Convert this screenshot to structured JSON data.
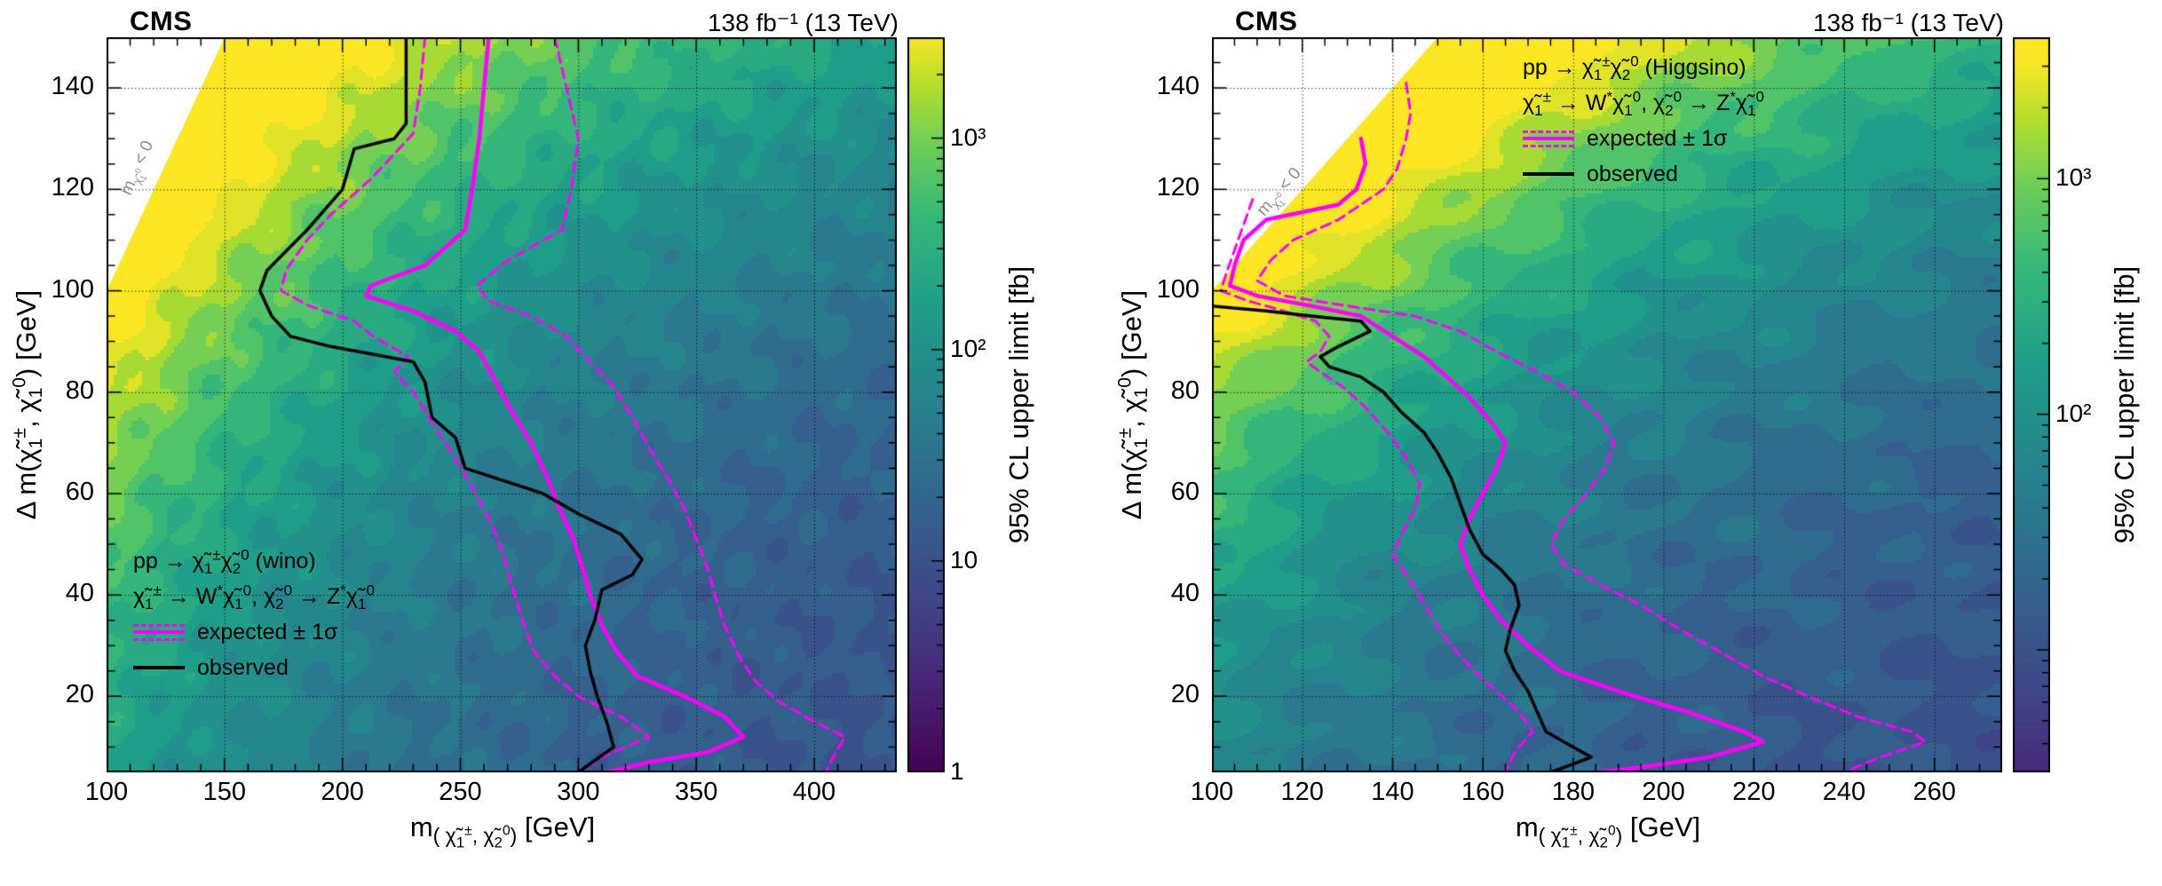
{
  "page": {
    "background": "#ffffff"
  },
  "colors": {
    "expected": "#ff00ff",
    "observed": "#000000",
    "grid": "#000000",
    "forbidden_text": "#8a8a8a"
  },
  "chart_data": [
    {
      "type": "heatmap",
      "model": "wino",
      "cms": "CMS",
      "lumi": "138 fb⁻¹ (13 TeV)",
      "xlabel_html": "m<sub>( χ̃<sub>1</sub><sup>±</sup>, χ̃<sub>2</sub><sup>0</sup>)</sub> [GeV]",
      "ylabel_html": "Δ m(χ̃<sub>1</sub><sup>±</sup>, χ̃<sub>1</sub><sup>0</sup>) [GeV]",
      "forbidden_html": "m<sub>χ̃<sub>1</sub><sup>0</sup></sub> &lt; 0",
      "legend": {
        "process_html": "pp → χ̃<sub>1</sub><sup>±</sup>χ̃<sub>2</sub><sup>0</sup>  (wino)",
        "decay_html": "χ̃<sub>1</sub><sup>±</sup> → W<sup>*</sup>χ̃<sub>1</sub><sup>0</sup>,  χ̃<sub>2</sub><sup>0</sup> → Z<sup>*</sup>χ̃<sub>1</sub><sup>0</sup>",
        "expected_label": "expected ± 1σ",
        "observed_label": "observed"
      },
      "axes": {
        "x_min": 100,
        "x_max": 435,
        "y_min": 5,
        "y_max": 150,
        "x_ticks": [
          100,
          150,
          200,
          250,
          300,
          350,
          400
        ],
        "x_minor": 10,
        "y_ticks": [
          20,
          40,
          60,
          80,
          100,
          120,
          140
        ],
        "y_minor": 5,
        "grid": true
      },
      "colorbar": {
        "label": "95% CL upper limit [fb]",
        "scale": "log",
        "log_min": 0,
        "log_max": 3.477,
        "ticks": [
          {
            "label": "10³",
            "value": 1000
          },
          {
            "label": "10²",
            "value": 100
          },
          {
            "label": "10",
            "value": 10
          },
          {
            "label": "1",
            "value": 1
          }
        ]
      },
      "field": {
        "base": 0.9,
        "amp": 2.6,
        "diag_scale": 150,
        "top": 1.0
      },
      "forbidden_region": {
        "rule": "dm > m"
      },
      "contours": {
        "observed": [
          [
            227,
            150
          ],
          [
            227,
            133
          ],
          [
            222,
            130
          ],
          [
            205,
            128
          ],
          [
            200,
            120
          ],
          [
            185,
            112
          ],
          [
            168,
            104
          ],
          [
            165,
            100
          ],
          [
            170,
            95
          ],
          [
            178,
            91
          ],
          [
            195,
            89
          ],
          [
            230,
            86
          ],
          [
            235,
            82
          ],
          [
            238,
            75
          ],
          [
            248,
            71
          ],
          [
            252,
            65
          ],
          [
            285,
            60
          ],
          [
            300,
            56
          ],
          [
            318,
            52
          ],
          [
            327,
            47
          ],
          [
            323,
            44
          ],
          [
            310,
            41
          ],
          [
            307,
            35
          ],
          [
            303,
            30
          ],
          [
            305,
            25
          ],
          [
            308,
            20
          ],
          [
            312,
            15
          ],
          [
            315,
            10
          ],
          [
            303,
            6
          ],
          [
            300,
            5
          ]
        ],
        "expected": [
          [
            262,
            150
          ],
          [
            260,
            140
          ],
          [
            258,
            130
          ],
          [
            255,
            120
          ],
          [
            252,
            112
          ],
          [
            235,
            105
          ],
          [
            212,
            101
          ],
          [
            210,
            99
          ],
          [
            230,
            96
          ],
          [
            248,
            92
          ],
          [
            258,
            88
          ],
          [
            265,
            82
          ],
          [
            272,
            76
          ],
          [
            280,
            70
          ],
          [
            287,
            63
          ],
          [
            292,
            57
          ],
          [
            298,
            51
          ],
          [
            302,
            45
          ],
          [
            305,
            40
          ],
          [
            310,
            34
          ],
          [
            316,
            29
          ],
          [
            325,
            24
          ],
          [
            345,
            20
          ],
          [
            362,
            16
          ],
          [
            370,
            12
          ],
          [
            355,
            9
          ],
          [
            330,
            7
          ],
          [
            312,
            5
          ]
        ],
        "expected_up": [
          [
            290,
            150
          ],
          [
            295,
            140
          ],
          [
            300,
            130
          ],
          [
            297,
            120
          ],
          [
            293,
            112
          ],
          [
            270,
            106
          ],
          [
            257,
            101
          ],
          [
            262,
            98
          ],
          [
            280,
            95
          ],
          [
            295,
            91
          ],
          [
            305,
            86
          ],
          [
            315,
            81
          ],
          [
            323,
            75
          ],
          [
            330,
            69
          ],
          [
            338,
            63
          ],
          [
            345,
            57
          ],
          [
            350,
            51
          ],
          [
            355,
            45
          ],
          [
            358,
            40
          ],
          [
            362,
            34
          ],
          [
            368,
            28
          ],
          [
            375,
            23
          ],
          [
            385,
            19
          ],
          [
            400,
            15
          ],
          [
            413,
            12
          ],
          [
            408,
            8
          ],
          [
            405,
            5
          ]
        ],
        "expected_down": [
          [
            235,
            150
          ],
          [
            233,
            140
          ],
          [
            230,
            131
          ],
          [
            212,
            122
          ],
          [
            195,
            115
          ],
          [
            185,
            110
          ],
          [
            176,
            104
          ],
          [
            174,
            100
          ],
          [
            186,
            97
          ],
          [
            205,
            94
          ],
          [
            213,
            91
          ],
          [
            228,
            87
          ],
          [
            222,
            84
          ],
          [
            230,
            80
          ],
          [
            238,
            74
          ],
          [
            245,
            69
          ],
          [
            253,
            63
          ],
          [
            260,
            57
          ],
          [
            266,
            51
          ],
          [
            270,
            45
          ],
          [
            273,
            40
          ],
          [
            277,
            34
          ],
          [
            281,
            29
          ],
          [
            290,
            24
          ],
          [
            300,
            20
          ],
          [
            318,
            16
          ],
          [
            330,
            12
          ],
          [
            310,
            8
          ],
          [
            300,
            5
          ]
        ]
      }
    },
    {
      "type": "heatmap",
      "model": "Higgsino",
      "cms": "CMS",
      "lumi": "138 fb⁻¹ (13 TeV)",
      "xlabel_html": "m<sub>( χ̃<sub>1</sub><sup>±</sup>, χ̃<sub>2</sub><sup>0</sup>)</sub> [GeV]",
      "ylabel_html": "Δ m(χ̃<sub>1</sub><sup>±</sup>, χ̃<sub>1</sub><sup>0</sup>) [GeV]",
      "forbidden_html": "m<sub>χ̃<sub>1</sub><sup>0</sup></sub> &lt; 0",
      "legend": {
        "process_html": "pp → χ̃<sub>1</sub><sup>±</sup>χ̃<sub>2</sub><sup>0</sup>  (Higgsino)",
        "decay_html": "χ̃<sub>1</sub><sup>±</sup> → W<sup>*</sup>χ̃<sub>1</sub><sup>0</sup>,  χ̃<sub>2</sub><sup>0</sup> → Z<sup>*</sup>χ̃<sub>1</sub><sup>0</sup>",
        "expected_label": "expected ± 1σ",
        "observed_label": "observed"
      },
      "axes": {
        "x_min": 100,
        "x_max": 275,
        "y_min": 5,
        "y_max": 150,
        "x_ticks": [
          100,
          120,
          140,
          160,
          180,
          200,
          220,
          240,
          260
        ],
        "x_minor": 5,
        "y_ticks": [
          20,
          40,
          60,
          80,
          100,
          120,
          140
        ],
        "y_minor": 5,
        "grid": true
      },
      "colorbar": {
        "label": "95% CL upper limit [fb]",
        "scale": "log",
        "log_min": 0.48,
        "log_max": 3.6,
        "ticks": [
          {
            "label": "10³",
            "value": 1000
          },
          {
            "label": "10²",
            "value": 100
          }
        ]
      },
      "field": {
        "base": 0.9,
        "amp": 2.6,
        "diag_scale": 90,
        "top": 1.0
      },
      "forbidden_region": {
        "rule": "dm > m"
      },
      "contours": {
        "observed": [
          [
            100,
            97
          ],
          [
            112,
            96
          ],
          [
            122,
            95
          ],
          [
            133,
            94
          ],
          [
            135,
            92
          ],
          [
            128,
            89
          ],
          [
            124,
            87
          ],
          [
            126,
            85
          ],
          [
            133,
            83
          ],
          [
            138,
            80
          ],
          [
            142,
            76
          ],
          [
            147,
            72
          ],
          [
            150,
            68
          ],
          [
            153,
            63
          ],
          [
            155,
            58
          ],
          [
            157,
            53
          ],
          [
            160,
            48
          ],
          [
            164,
            45
          ],
          [
            167,
            42
          ],
          [
            168,
            38
          ],
          [
            166,
            33
          ],
          [
            165,
            29
          ],
          [
            167,
            25
          ],
          [
            170,
            21
          ],
          [
            172,
            17
          ],
          [
            174,
            13
          ],
          [
            180,
            10
          ],
          [
            184,
            8
          ],
          [
            178,
            6
          ],
          [
            175,
            5
          ]
        ],
        "expected": [
          [
            133,
            130
          ],
          [
            134,
            125
          ],
          [
            132,
            120
          ],
          [
            128,
            117
          ],
          [
            112,
            114
          ],
          [
            107,
            110
          ],
          [
            105,
            105
          ],
          [
            104,
            101
          ],
          [
            110,
            99
          ],
          [
            122,
            97
          ],
          [
            133,
            95
          ],
          [
            140,
            91
          ],
          [
            147,
            87
          ],
          [
            152,
            83
          ],
          [
            157,
            79
          ],
          [
            162,
            74
          ],
          [
            165,
            70
          ],
          [
            163,
            65
          ],
          [
            160,
            60
          ],
          [
            157,
            55
          ],
          [
            155,
            50
          ],
          [
            157,
            45
          ],
          [
            160,
            40
          ],
          [
            164,
            35
          ],
          [
            170,
            30
          ],
          [
            177,
            25
          ],
          [
            190,
            21
          ],
          [
            205,
            17
          ],
          [
            218,
            13
          ],
          [
            222,
            11
          ],
          [
            210,
            8
          ],
          [
            195,
            6
          ],
          [
            185,
            5
          ]
        ],
        "expected_up": [
          [
            143,
            141
          ],
          [
            144,
            135
          ],
          [
            143,
            130
          ],
          [
            141,
            124
          ],
          [
            138,
            120
          ],
          [
            128,
            114
          ],
          [
            118,
            110
          ],
          [
            113,
            106
          ],
          [
            110,
            102
          ],
          [
            116,
            99
          ],
          [
            130,
            97
          ],
          [
            145,
            95
          ],
          [
            155,
            92
          ],
          [
            163,
            88
          ],
          [
            172,
            84
          ],
          [
            180,
            80
          ],
          [
            186,
            75
          ],
          [
            189,
            70
          ],
          [
            187,
            65
          ],
          [
            183,
            60
          ],
          [
            178,
            55
          ],
          [
            175,
            50
          ],
          [
            178,
            46
          ],
          [
            186,
            42
          ],
          [
            195,
            38
          ],
          [
            204,
            33
          ],
          [
            212,
            29
          ],
          [
            222,
            24
          ],
          [
            232,
            20
          ],
          [
            243,
            16
          ],
          [
            255,
            13
          ],
          [
            258,
            11
          ],
          [
            248,
            8
          ],
          [
            240,
            5
          ]
        ],
        "expected_down": [
          [
            109,
            118
          ],
          [
            107,
            113
          ],
          [
            105,
            108
          ],
          [
            103,
            103
          ],
          [
            102,
            100
          ],
          [
            108,
            98
          ],
          [
            116,
            96
          ],
          [
            123,
            94
          ],
          [
            126,
            91
          ],
          [
            124,
            88
          ],
          [
            121,
            86
          ],
          [
            124,
            84
          ],
          [
            129,
            81
          ],
          [
            134,
            77
          ],
          [
            139,
            72
          ],
          [
            143,
            67
          ],
          [
            146,
            62
          ],
          [
            145,
            57
          ],
          [
            142,
            52
          ],
          [
            140,
            48
          ],
          [
            143,
            44
          ],
          [
            146,
            40
          ],
          [
            149,
            35
          ],
          [
            153,
            30
          ],
          [
            158,
            25
          ],
          [
            163,
            21
          ],
          [
            168,
            17
          ],
          [
            171,
            13
          ],
          [
            167,
            9
          ],
          [
            165,
            5
          ]
        ]
      }
    }
  ]
}
